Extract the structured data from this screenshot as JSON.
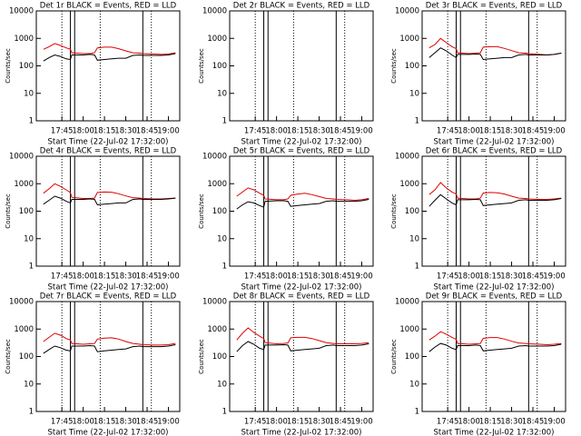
{
  "chart_data": [
    {
      "type": "line",
      "title": "Det 1r BLACK = Events, RED = LLD",
      "xlabel": "Start Time (22-Jul-02 17:32:00)",
      "ylabel": "Counts/sec",
      "log": true,
      "ylim": [
        1,
        10000
      ],
      "yticks": [
        1,
        10,
        100,
        1000,
        10000
      ],
      "xlim": [
        "17:27",
        "19:08"
      ],
      "xticks": [
        "17:45",
        "18:00",
        "18:15",
        "18:30",
        "18:45",
        "19:00"
      ],
      "dotted_lines": [
        "17:45",
        "18:12",
        "18:48"
      ],
      "solid_lines": [
        "17:51",
        "17:54",
        "18:42"
      ],
      "x": [
        "17:32",
        "17:36",
        "17:40",
        "17:44",
        "17:48",
        "17:51",
        "17:52",
        "18:00",
        "18:05",
        "18:08",
        "18:10",
        "18:15",
        "18:20",
        "18:25",
        "18:30",
        "18:35",
        "18:40",
        "18:42",
        "18:50",
        "18:55",
        "19:00",
        "19:05"
      ],
      "series": [
        {
          "color": "#e00000",
          "values": [
            400,
            500,
            650,
            550,
            450,
            400,
            300,
            280,
            280,
            300,
            450,
            480,
            480,
            420,
            350,
            300,
            290,
            280,
            270,
            260,
            270,
            300
          ]
        },
        {
          "color": "#000000",
          "values": [
            150,
            200,
            250,
            220,
            180,
            170,
            250,
            250,
            260,
            250,
            160,
            170,
            180,
            190,
            190,
            240,
            250,
            240,
            240,
            240,
            250,
            280
          ]
        }
      ]
    },
    {
      "type": "line",
      "title": "Det 2r BLACK = Events, RED = LLD",
      "xlabel": "Start Time (22-Jul-02 17:32:00)",
      "ylabel": "Counts/sec",
      "log": true,
      "ylim": [
        1,
        10000
      ],
      "yticks": [
        1,
        10,
        100,
        1000,
        10000
      ],
      "xlim": [
        "17:27",
        "19:08"
      ],
      "xticks": [
        "17:45",
        "18:00",
        "18:15",
        "18:30",
        "18:45",
        "19:00"
      ],
      "dotted_lines": [
        "17:45",
        "18:12",
        "18:48"
      ],
      "solid_lines": [
        "17:51",
        "17:54",
        "18:42"
      ],
      "x": [],
      "series": []
    },
    {
      "type": "line",
      "title": "Det 3r BLACK = Events, RED = LLD",
      "xlabel": "Start Time (22-Jul-02 17:32:00)",
      "ylabel": "Counts/sec",
      "log": true,
      "ylim": [
        1,
        10000
      ],
      "yticks": [
        1,
        10,
        100,
        1000,
        10000
      ],
      "xlim": [
        "17:27",
        "19:08"
      ],
      "xticks": [
        "17:45",
        "18:00",
        "18:15",
        "18:30",
        "18:45",
        "19:00"
      ],
      "dotted_lines": [
        "17:45",
        "18:12",
        "18:48"
      ],
      "solid_lines": [
        "17:51",
        "17:54",
        "18:42"
      ],
      "x": [
        "17:32",
        "17:36",
        "17:40",
        "17:44",
        "17:48",
        "17:51",
        "17:52",
        "18:00",
        "18:05",
        "18:08",
        "18:10",
        "18:15",
        "18:20",
        "18:25",
        "18:30",
        "18:35",
        "18:40",
        "18:42",
        "18:50",
        "18:55",
        "19:00",
        "19:05"
      ],
      "series": [
        {
          "color": "#e00000",
          "values": [
            450,
            600,
            1000,
            700,
            500,
            420,
            300,
            280,
            290,
            300,
            480,
            500,
            500,
            430,
            360,
            300,
            290,
            280,
            260,
            250,
            260,
            290
          ]
        },
        {
          "color": "#000000",
          "values": [
            200,
            300,
            450,
            350,
            250,
            200,
            260,
            260,
            270,
            260,
            170,
            180,
            190,
            200,
            200,
            250,
            260,
            250,
            250,
            250,
            260,
            290
          ]
        }
      ]
    },
    {
      "type": "line",
      "title": "Det 4r BLACK = Events, RED = LLD",
      "xlabel": "Start Time (22-Jul-02 17:32:00)",
      "ylabel": "Counts/sec",
      "log": true,
      "ylim": [
        1,
        10000
      ],
      "yticks": [
        1,
        10,
        100,
        1000,
        10000
      ],
      "xlim": [
        "17:27",
        "19:08"
      ],
      "xticks": [
        "17:45",
        "18:00",
        "18:15",
        "18:30",
        "18:45",
        "19:00"
      ],
      "dotted_lines": [
        "17:45",
        "18:12",
        "18:48"
      ],
      "solid_lines": [
        "17:51",
        "17:54",
        "18:42"
      ],
      "x": [
        "17:32",
        "17:36",
        "17:40",
        "17:44",
        "17:48",
        "17:51",
        "17:52",
        "18:00",
        "18:05",
        "18:08",
        "18:10",
        "18:15",
        "18:20",
        "18:25",
        "18:30",
        "18:35",
        "18:40",
        "18:42",
        "18:50",
        "18:55",
        "19:00",
        "19:05"
      ],
      "series": [
        {
          "color": "#e00000",
          "values": [
            450,
            650,
            1000,
            800,
            600,
            480,
            320,
            290,
            290,
            300,
            480,
            500,
            490,
            430,
            360,
            310,
            300,
            290,
            280,
            280,
            290,
            300
          ]
        },
        {
          "color": "#000000",
          "values": [
            180,
            250,
            350,
            300,
            230,
            200,
            270,
            270,
            280,
            270,
            170,
            180,
            190,
            200,
            200,
            270,
            280,
            270,
            270,
            270,
            280,
            300
          ]
        }
      ]
    },
    {
      "type": "line",
      "title": "Det 5r BLACK = Events, RED = LLD",
      "xlabel": "Start Time (22-Jul-02 17:32:00)",
      "ylabel": "Counts/sec",
      "log": true,
      "ylim": [
        1,
        10000
      ],
      "yticks": [
        1,
        10,
        100,
        1000,
        10000
      ],
      "xlim": [
        "17:27",
        "19:08"
      ],
      "xticks": [
        "17:45",
        "18:00",
        "18:15",
        "18:30",
        "18:45",
        "19:00"
      ],
      "dotted_lines": [
        "17:45",
        "18:12",
        "18:48"
      ],
      "solid_lines": [
        "17:51",
        "17:54",
        "18:42"
      ],
      "x": [
        "17:32",
        "17:36",
        "17:40",
        "17:44",
        "17:48",
        "17:51",
        "17:52",
        "18:00",
        "18:05",
        "18:08",
        "18:10",
        "18:15",
        "18:20",
        "18:25",
        "18:30",
        "18:35",
        "18:40",
        "18:42",
        "18:50",
        "18:55",
        "19:00",
        "19:05"
      ],
      "series": [
        {
          "color": "#e00000",
          "values": [
            350,
            500,
            700,
            600,
            450,
            380,
            280,
            260,
            260,
            280,
            380,
            420,
            450,
            400,
            340,
            290,
            280,
            270,
            260,
            250,
            260,
            290
          ]
        },
        {
          "color": "#000000",
          "values": [
            120,
            170,
            220,
            200,
            160,
            140,
            230,
            240,
            240,
            230,
            150,
            160,
            170,
            180,
            190,
            230,
            240,
            230,
            230,
            230,
            240,
            270
          ]
        }
      ]
    },
    {
      "type": "line",
      "title": "Det 6r BLACK = Events, RED = LLD",
      "xlabel": "Start Time (22-Jul-02 17:32:00)",
      "ylabel": "Counts/sec",
      "log": true,
      "ylim": [
        1,
        10000
      ],
      "yticks": [
        1,
        10,
        100,
        1000,
        10000
      ],
      "xlim": [
        "17:27",
        "19:08"
      ],
      "xticks": [
        "17:45",
        "18:00",
        "18:15",
        "18:30",
        "18:45",
        "19:00"
      ],
      "dotted_lines": [
        "17:45",
        "18:12",
        "18:48"
      ],
      "solid_lines": [
        "17:51",
        "17:54",
        "18:42"
      ],
      "x": [
        "17:32",
        "17:36",
        "17:40",
        "17:44",
        "17:48",
        "17:51",
        "17:52",
        "18:00",
        "18:05",
        "18:08",
        "18:10",
        "18:15",
        "18:20",
        "18:25",
        "18:30",
        "18:35",
        "18:40",
        "18:42",
        "18:50",
        "18:55",
        "19:00",
        "19:05"
      ],
      "series": [
        {
          "color": "#e00000",
          "values": [
            400,
            600,
            1100,
            700,
            500,
            420,
            300,
            280,
            280,
            300,
            460,
            480,
            470,
            420,
            350,
            300,
            290,
            280,
            270,
            270,
            280,
            300
          ]
        },
        {
          "color": "#000000",
          "values": [
            150,
            250,
            400,
            280,
            200,
            170,
            260,
            260,
            270,
            260,
            160,
            170,
            180,
            190,
            200,
            250,
            260,
            250,
            250,
            250,
            260,
            290
          ]
        }
      ]
    },
    {
      "type": "line",
      "title": "Det 7r BLACK = Events, RED = LLD",
      "xlabel": "Start Time (22-Jul-02 17:32:00)",
      "ylabel": "Counts/sec",
      "log": true,
      "ylim": [
        1,
        10000
      ],
      "yticks": [
        1,
        10,
        100,
        1000,
        10000
      ],
      "xlim": [
        "17:27",
        "19:08"
      ],
      "xticks": [
        "17:45",
        "18:00",
        "18:15",
        "18:30",
        "18:45",
        "19:00"
      ],
      "dotted_lines": [
        "17:45",
        "18:12",
        "18:48"
      ],
      "solid_lines": [
        "17:51",
        "17:54",
        "18:42"
      ],
      "x": [
        "17:32",
        "17:36",
        "17:40",
        "17:44",
        "17:48",
        "17:51",
        "17:52",
        "18:00",
        "18:05",
        "18:08",
        "18:10",
        "18:15",
        "18:20",
        "18:25",
        "18:30",
        "18:35",
        "18:40",
        "18:42",
        "18:50",
        "18:55",
        "19:00",
        "19:05"
      ],
      "series": [
        {
          "color": "#e00000",
          "values": [
            350,
            500,
            700,
            600,
            450,
            400,
            300,
            280,
            290,
            300,
            430,
            470,
            480,
            430,
            350,
            300,
            280,
            270,
            260,
            260,
            270,
            300
          ]
        },
        {
          "color": "#000000",
          "values": [
            130,
            180,
            240,
            210,
            170,
            160,
            240,
            240,
            250,
            240,
            150,
            160,
            170,
            180,
            190,
            230,
            240,
            230,
            230,
            230,
            240,
            270
          ]
        }
      ]
    },
    {
      "type": "line",
      "title": "Det 8r BLACK = Events, RED = LLD",
      "xlabel": "Start Time (22-Jul-02 17:32:00)",
      "ylabel": "Counts/sec",
      "log": true,
      "ylim": [
        1,
        10000
      ],
      "yticks": [
        1,
        10,
        100,
        1000,
        10000
      ],
      "xlim": [
        "17:27",
        "19:08"
      ],
      "xticks": [
        "17:45",
        "18:00",
        "18:15",
        "18:30",
        "18:45",
        "19:00"
      ],
      "dotted_lines": [
        "17:45",
        "18:12",
        "18:48"
      ],
      "solid_lines": [
        "17:51",
        "17:54",
        "18:42"
      ],
      "x": [
        "17:32",
        "17:36",
        "17:40",
        "17:44",
        "17:48",
        "17:51",
        "17:52",
        "18:00",
        "18:05",
        "18:08",
        "18:10",
        "18:15",
        "18:20",
        "18:25",
        "18:30",
        "18:35",
        "18:40",
        "18:42",
        "18:50",
        "18:55",
        "19:00",
        "19:05"
      ],
      "series": [
        {
          "color": "#e00000",
          "values": [
            400,
            700,
            1100,
            750,
            550,
            450,
            320,
            290,
            300,
            310,
            480,
            500,
            500,
            450,
            380,
            320,
            300,
            290,
            290,
            290,
            300,
            320
          ]
        },
        {
          "color": "#000000",
          "values": [
            150,
            250,
            350,
            280,
            200,
            180,
            260,
            260,
            270,
            260,
            160,
            170,
            180,
            190,
            200,
            250,
            260,
            250,
            250,
            250,
            260,
            290
          ]
        }
      ]
    },
    {
      "type": "line",
      "title": "Det 9r BLACK = Events, RED = LLD",
      "xlabel": "Start Time (22-Jul-02 17:32:00)",
      "ylabel": "Counts/sec",
      "log": true,
      "ylim": [
        1,
        10000
      ],
      "yticks": [
        1,
        10,
        100,
        1000,
        10000
      ],
      "xlim": [
        "17:27",
        "19:08"
      ],
      "xticks": [
        "17:45",
        "18:00",
        "18:15",
        "18:30",
        "18:45",
        "19:00"
      ],
      "dotted_lines": [
        "17:45",
        "18:12",
        "18:48"
      ],
      "solid_lines": [
        "17:51",
        "17:54",
        "18:42"
      ],
      "x": [
        "17:32",
        "17:36",
        "17:40",
        "17:44",
        "17:48",
        "17:51",
        "17:52",
        "18:00",
        "18:05",
        "18:08",
        "18:10",
        "18:15",
        "18:20",
        "18:25",
        "18:30",
        "18:35",
        "18:40",
        "18:42",
        "18:50",
        "18:55",
        "19:00",
        "19:05"
      ],
      "series": [
        {
          "color": "#e00000",
          "values": [
            400,
            550,
            800,
            650,
            500,
            420,
            300,
            280,
            290,
            300,
            460,
            490,
            490,
            430,
            360,
            310,
            300,
            290,
            280,
            270,
            280,
            300
          ]
        },
        {
          "color": "#000000",
          "values": [
            150,
            220,
            300,
            260,
            200,
            180,
            250,
            250,
            260,
            250,
            160,
            170,
            180,
            190,
            200,
            240,
            250,
            240,
            240,
            240,
            250,
            280
          ]
        }
      ]
    }
  ]
}
